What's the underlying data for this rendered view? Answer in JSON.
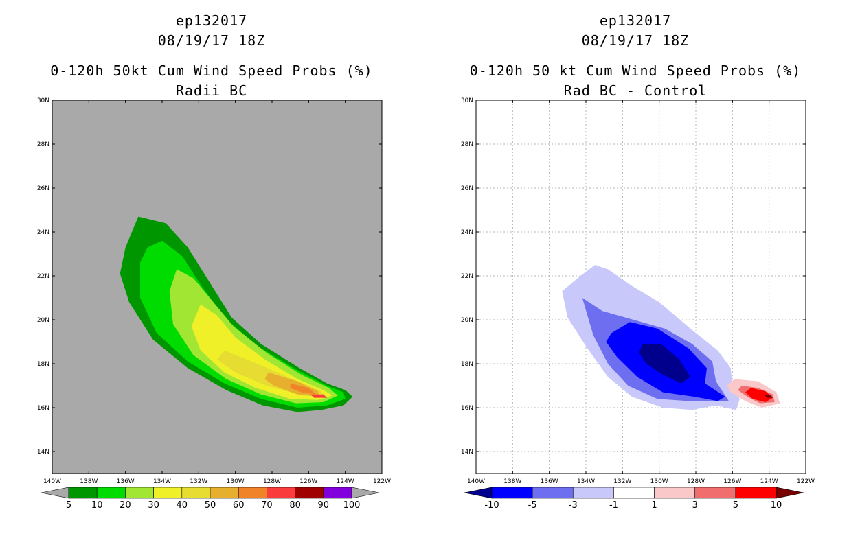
{
  "chart_data": [
    {
      "type": "contour",
      "title_line1": "ep132017",
      "title_line2": "08/19/17 18Z",
      "title_line3": "0-120h 50kt Cum Wind Speed Probs (%)",
      "title_line4": "Radii BC",
      "background": "#a9a9a9",
      "grid": false,
      "xlim": [
        -140,
        -122
      ],
      "ylim": [
        13,
        30
      ],
      "x_ticks": [
        "140W",
        "138W",
        "136W",
        "134W",
        "132W",
        "130W",
        "128W",
        "126W",
        "124W",
        "122W"
      ],
      "y_ticks": [
        "14N",
        "16N",
        "18N",
        "20N",
        "22N",
        "24N",
        "26N",
        "28N",
        "30N"
      ],
      "colorbar": {
        "labels": [
          "5",
          "10",
          "20",
          "30",
          "40",
          "50",
          "60",
          "70",
          "80",
          "90",
          "100"
        ],
        "colors": [
          "#009600",
          "#00dc00",
          "#a0e632",
          "#f0f028",
          "#e6dc32",
          "#e6af2d",
          "#f08228",
          "#fa3c3c",
          "#a00000",
          "#8200dc"
        ],
        "under_color": "#a9a9a9",
        "over_color": "#a9a9a9"
      },
      "contours": [
        {
          "level": 5,
          "color": "#009600",
          "ring": [
            [
              -135.3,
              24.7
            ],
            [
              -133.8,
              24.4
            ],
            [
              -132.6,
              23.3
            ],
            [
              -131.4,
              21.7
            ],
            [
              -130.2,
              20.1
            ],
            [
              -128.6,
              18.9
            ],
            [
              -126.5,
              17.8
            ],
            [
              -125.0,
              17.1
            ],
            [
              -124.0,
              16.8
            ],
            [
              -123.6,
              16.5
            ],
            [
              -124.1,
              16.1
            ],
            [
              -125.3,
              15.9
            ],
            [
              -126.6,
              15.8
            ],
            [
              -128.5,
              16.1
            ],
            [
              -130.5,
              16.8
            ],
            [
              -132.6,
              17.8
            ],
            [
              -134.5,
              19.1
            ],
            [
              -135.8,
              20.8
            ],
            [
              -136.3,
              22.1
            ],
            [
              -136.0,
              23.3
            ]
          ]
        },
        {
          "level": 10,
          "color": "#00dc00",
          "ring": [
            [
              -134.0,
              23.6
            ],
            [
              -132.9,
              22.9
            ],
            [
              -131.9,
              21.6
            ],
            [
              -130.6,
              20.1
            ],
            [
              -128.8,
              18.8
            ],
            [
              -126.6,
              17.7
            ],
            [
              -125.0,
              17.0
            ],
            [
              -124.1,
              16.7
            ],
            [
              -124.0,
              16.4
            ],
            [
              -125.0,
              16.1
            ],
            [
              -126.6,
              16.0
            ],
            [
              -128.6,
              16.4
            ],
            [
              -130.6,
              17.1
            ],
            [
              -132.6,
              18.1
            ],
            [
              -134.3,
              19.4
            ],
            [
              -135.2,
              21.0
            ],
            [
              -135.2,
              22.6
            ],
            [
              -134.8,
              23.3
            ]
          ]
        },
        {
          "level": 20,
          "color": "#a0e632",
          "ring": [
            [
              -133.2,
              22.3
            ],
            [
              -132.3,
              21.9
            ],
            [
              -131.4,
              21.0
            ],
            [
              -130.1,
              19.7
            ],
            [
              -128.3,
              18.5
            ],
            [
              -126.4,
              17.5
            ],
            [
              -124.9,
              16.9
            ],
            [
              -124.4,
              16.55
            ],
            [
              -125.2,
              16.25
            ],
            [
              -126.7,
              16.2
            ],
            [
              -128.6,
              16.6
            ],
            [
              -130.5,
              17.3
            ],
            [
              -132.3,
              18.4
            ],
            [
              -133.4,
              19.8
            ],
            [
              -133.6,
              21.3
            ]
          ]
        },
        {
          "level": 30,
          "color": "#f0f028",
          "ring": [
            [
              -131.9,
              20.7
            ],
            [
              -131.0,
              20.2
            ],
            [
              -130.0,
              19.2
            ],
            [
              -128.4,
              18.2
            ],
            [
              -126.6,
              17.3
            ],
            [
              -125.2,
              16.8
            ],
            [
              -124.7,
              16.55
            ],
            [
              -125.5,
              16.35
            ],
            [
              -127.0,
              16.4
            ],
            [
              -128.9,
              16.9
            ],
            [
              -130.6,
              17.6
            ],
            [
              -131.9,
              18.6
            ],
            [
              -132.4,
              19.7
            ]
          ]
        },
        {
          "level": 40,
          "color": "#e6dc32",
          "ring": [
            [
              -130.6,
              18.6
            ],
            [
              -128.8,
              18.0
            ],
            [
              -126.9,
              17.3
            ],
            [
              -125.4,
              16.8
            ],
            [
              -125.0,
              16.5
            ],
            [
              -126.3,
              16.55
            ],
            [
              -128.3,
              17.0
            ],
            [
              -130.0,
              17.6
            ],
            [
              -131.0,
              18.2
            ]
          ]
        },
        {
          "level": 50,
          "color": "#e6af2d",
          "ring": [
            [
              -128.2,
              17.6
            ],
            [
              -126.6,
              17.2
            ],
            [
              -125.5,
              16.75
            ],
            [
              -125.4,
              16.5
            ],
            [
              -126.6,
              16.6
            ],
            [
              -127.9,
              17.0
            ],
            [
              -128.4,
              17.3
            ]
          ]
        },
        {
          "level": 60,
          "color": "#f08228",
          "ring": [
            [
              -127.0,
              17.1
            ],
            [
              -126.0,
              16.9
            ],
            [
              -125.6,
              16.6
            ],
            [
              -126.4,
              16.7
            ],
            [
              -127.0,
              16.9
            ]
          ]
        },
        {
          "level": 70,
          "color": "#fa3c3c",
          "ring": [
            [
              -125.9,
              16.6
            ],
            [
              -125.2,
              16.6
            ],
            [
              -125.0,
              16.45
            ],
            [
              -125.7,
              16.45
            ]
          ]
        }
      ]
    },
    {
      "type": "contour",
      "title_line1": "ep132017",
      "title_line2": "08/19/17 18Z",
      "title_line3": "0-120h 50 kt Cum Wind Speed Probs (%)",
      "title_line4": "Rad BC - Control",
      "background": "#ffffff",
      "grid": true,
      "xlim": [
        -140,
        -122
      ],
      "ylim": [
        13,
        30
      ],
      "x_ticks": [
        "140W",
        "138W",
        "136W",
        "134W",
        "132W",
        "130W",
        "128W",
        "126W",
        "124W",
        "122W"
      ],
      "y_ticks": [
        "14N",
        "16N",
        "18N",
        "20N",
        "22N",
        "24N",
        "26N",
        "28N",
        "30N"
      ],
      "colorbar": {
        "labels": [
          "-10",
          "-5",
          "-3",
          "-1",
          "1",
          "3",
          "5",
          "10"
        ],
        "colors": [
          "#0000ff",
          "#6e6ef0",
          "#c8c8fa",
          "#ffffff",
          "#fac8c8",
          "#f06e6e",
          "#ff0000"
        ],
        "under_color": "#00008c",
        "over_color": "#780000"
      },
      "contours": [
        {
          "level": -1,
          "color": "#c8c8fa",
          "ring": [
            [
              -135.3,
              21.3
            ],
            [
              -134.3,
              22.0
            ],
            [
              -133.5,
              22.5
            ],
            [
              -132.8,
              22.3
            ],
            [
              -131.6,
              21.6
            ],
            [
              -130.0,
              20.8
            ],
            [
              -128.3,
              19.6
            ],
            [
              -126.8,
              18.6
            ],
            [
              -126.1,
              17.8
            ],
            [
              -126.0,
              17.0
            ],
            [
              -125.6,
              16.4
            ],
            [
              -125.8,
              15.9
            ],
            [
              -126.9,
              16.1
            ],
            [
              -128.2,
              15.9
            ],
            [
              -129.8,
              16.0
            ],
            [
              -131.5,
              16.5
            ],
            [
              -132.8,
              17.4
            ],
            [
              -134.0,
              18.8
            ],
            [
              -135.0,
              20.1
            ]
          ]
        },
        {
          "level": -3,
          "color": "#6e6ef0",
          "ring": [
            [
              -134.2,
              21.0
            ],
            [
              -133.1,
              20.4
            ],
            [
              -131.4,
              20.0
            ],
            [
              -129.7,
              19.6
            ],
            [
              -128.2,
              18.9
            ],
            [
              -127.1,
              18.1
            ],
            [
              -126.9,
              17.2
            ],
            [
              -126.2,
              16.3
            ],
            [
              -127.2,
              16.3
            ],
            [
              -128.4,
              16.3
            ],
            [
              -130.1,
              16.4
            ],
            [
              -131.7,
              17.0
            ],
            [
              -132.8,
              18.0
            ],
            [
              -133.6,
              19.3
            ]
          ]
        },
        {
          "level": -5,
          "color": "#0000ff",
          "ring": [
            [
              -132.6,
              19.4
            ],
            [
              -131.6,
              19.9
            ],
            [
              -130.1,
              19.6
            ],
            [
              -128.4,
              18.7
            ],
            [
              -127.4,
              17.8
            ],
            [
              -127.5,
              17.1
            ],
            [
              -126.4,
              16.5
            ],
            [
              -126.8,
              16.3
            ],
            [
              -128.1,
              16.5
            ],
            [
              -129.8,
              16.7
            ],
            [
              -131.2,
              17.4
            ],
            [
              -132.3,
              18.3
            ],
            [
              -132.9,
              19.0
            ]
          ]
        },
        {
          "level": -10,
          "color": "#00008c",
          "ring": [
            [
              -130.9,
              18.9
            ],
            [
              -129.9,
              18.9
            ],
            [
              -128.9,
              18.2
            ],
            [
              -128.3,
              17.4
            ],
            [
              -128.8,
              17.1
            ],
            [
              -129.8,
              17.5
            ],
            [
              -130.7,
              18.0
            ],
            [
              -131.1,
              18.5
            ]
          ]
        },
        {
          "level": 1,
          "color": "#fac8c8",
          "ring": [
            [
              -125.9,
              17.3
            ],
            [
              -124.6,
              17.2
            ],
            [
              -123.6,
              16.7
            ],
            [
              -123.4,
              16.2
            ],
            [
              -124.4,
              16.0
            ],
            [
              -125.3,
              16.3
            ],
            [
              -126.1,
              16.7
            ],
            [
              -126.3,
              17.0
            ]
          ]
        },
        {
          "level": 3,
          "color": "#f06e6e",
          "ring": [
            [
              -125.5,
              17.0
            ],
            [
              -124.6,
              16.9
            ],
            [
              -123.8,
              16.6
            ],
            [
              -123.7,
              16.25
            ],
            [
              -124.5,
              16.2
            ],
            [
              -125.2,
              16.5
            ],
            [
              -125.7,
              16.8
            ]
          ]
        },
        {
          "level": 5,
          "color": "#ff0000",
          "ring": [
            [
              -125.0,
              16.9
            ],
            [
              -124.2,
              16.75
            ],
            [
              -123.8,
              16.45
            ],
            [
              -124.2,
              16.25
            ],
            [
              -124.9,
              16.4
            ],
            [
              -125.3,
              16.7
            ]
          ]
        },
        {
          "level": 10,
          "color": "#780000",
          "ring": [
            [
              -124.3,
              16.6
            ],
            [
              -123.9,
              16.55
            ],
            [
              -123.8,
              16.45
            ],
            [
              -124.1,
              16.45
            ]
          ]
        }
      ]
    }
  ]
}
